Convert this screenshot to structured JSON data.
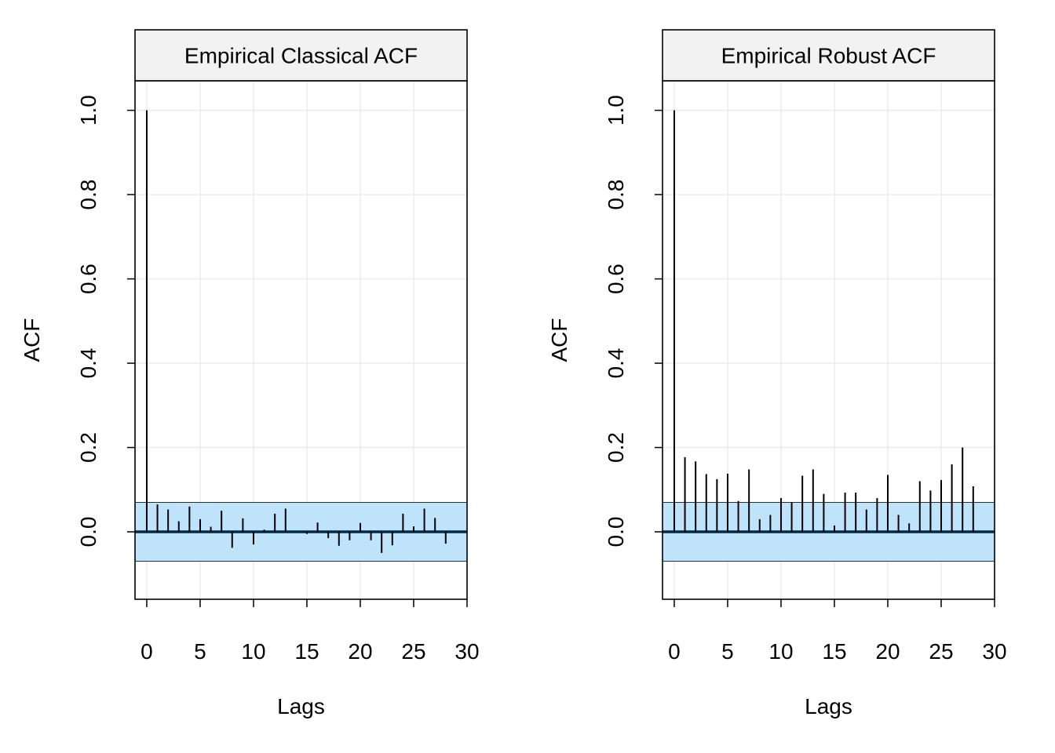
{
  "chart_data": [
    {
      "type": "bar",
      "title": "Empirical Classical ACF",
      "xlabel": "Lags",
      "ylabel": "ACF",
      "xlim": [
        -1.1,
        30
      ],
      "ylim": [
        -0.16,
        1.07
      ],
      "x_ticks": [
        0,
        5,
        10,
        15,
        20,
        25,
        30
      ],
      "y_ticks": [
        0.0,
        0.2,
        0.4,
        0.6,
        0.8,
        1.0
      ],
      "y_tick_labels": [
        "0.0",
        "0.2",
        "0.4",
        "0.6",
        "0.8",
        "1.0"
      ],
      "grid": true,
      "confidence_band": [
        -0.07,
        0.07
      ],
      "lags": [
        0,
        1,
        2,
        3,
        4,
        5,
        6,
        7,
        8,
        9,
        10,
        11,
        12,
        13,
        14,
        15,
        16,
        17,
        18,
        19,
        20,
        21,
        22,
        23,
        24,
        25,
        26,
        27,
        28
      ],
      "values": [
        1.0,
        0.065,
        0.053,
        0.025,
        0.06,
        0.03,
        0.012,
        0.05,
        -0.038,
        0.032,
        -0.03,
        0.005,
        0.043,
        0.055,
        0.0,
        -0.005,
        0.022,
        -0.015,
        -0.033,
        -0.02,
        0.021,
        -0.02,
        -0.05,
        -0.032,
        0.043,
        0.013,
        0.055,
        0.033,
        -0.028
      ]
    },
    {
      "type": "bar",
      "title": "Empirical Robust ACF",
      "xlabel": "Lags",
      "ylabel": "ACF",
      "xlim": [
        -1.1,
        30
      ],
      "ylim": [
        -0.16,
        1.07
      ],
      "x_ticks": [
        0,
        5,
        10,
        15,
        20,
        25,
        30
      ],
      "y_ticks": [
        0.0,
        0.2,
        0.4,
        0.6,
        0.8,
        1.0
      ],
      "y_tick_labels": [
        "0.0",
        "0.2",
        "0.4",
        "0.6",
        "0.8",
        "1.0"
      ],
      "grid": true,
      "confidence_band": [
        -0.07,
        0.07
      ],
      "lags": [
        0,
        1,
        2,
        3,
        4,
        5,
        6,
        7,
        8,
        9,
        10,
        11,
        12,
        13,
        14,
        15,
        16,
        17,
        18,
        19,
        20,
        21,
        22,
        23,
        24,
        25,
        26,
        27,
        28
      ],
      "values": [
        1.0,
        0.177,
        0.167,
        0.137,
        0.125,
        0.138,
        0.073,
        0.148,
        0.03,
        0.04,
        0.08,
        0.07,
        0.133,
        0.148,
        0.09,
        0.015,
        0.093,
        0.093,
        0.053,
        0.08,
        0.135,
        0.04,
        0.02,
        0.12,
        0.098,
        0.123,
        0.16,
        0.2,
        0.108
      ]
    }
  ],
  "colors": {
    "band_fill": "#BEE3FB",
    "strip_fill": "#F2F2F2",
    "grid": "#EBEBEB",
    "zero_line": "#002B47",
    "spike": "#000000"
  }
}
